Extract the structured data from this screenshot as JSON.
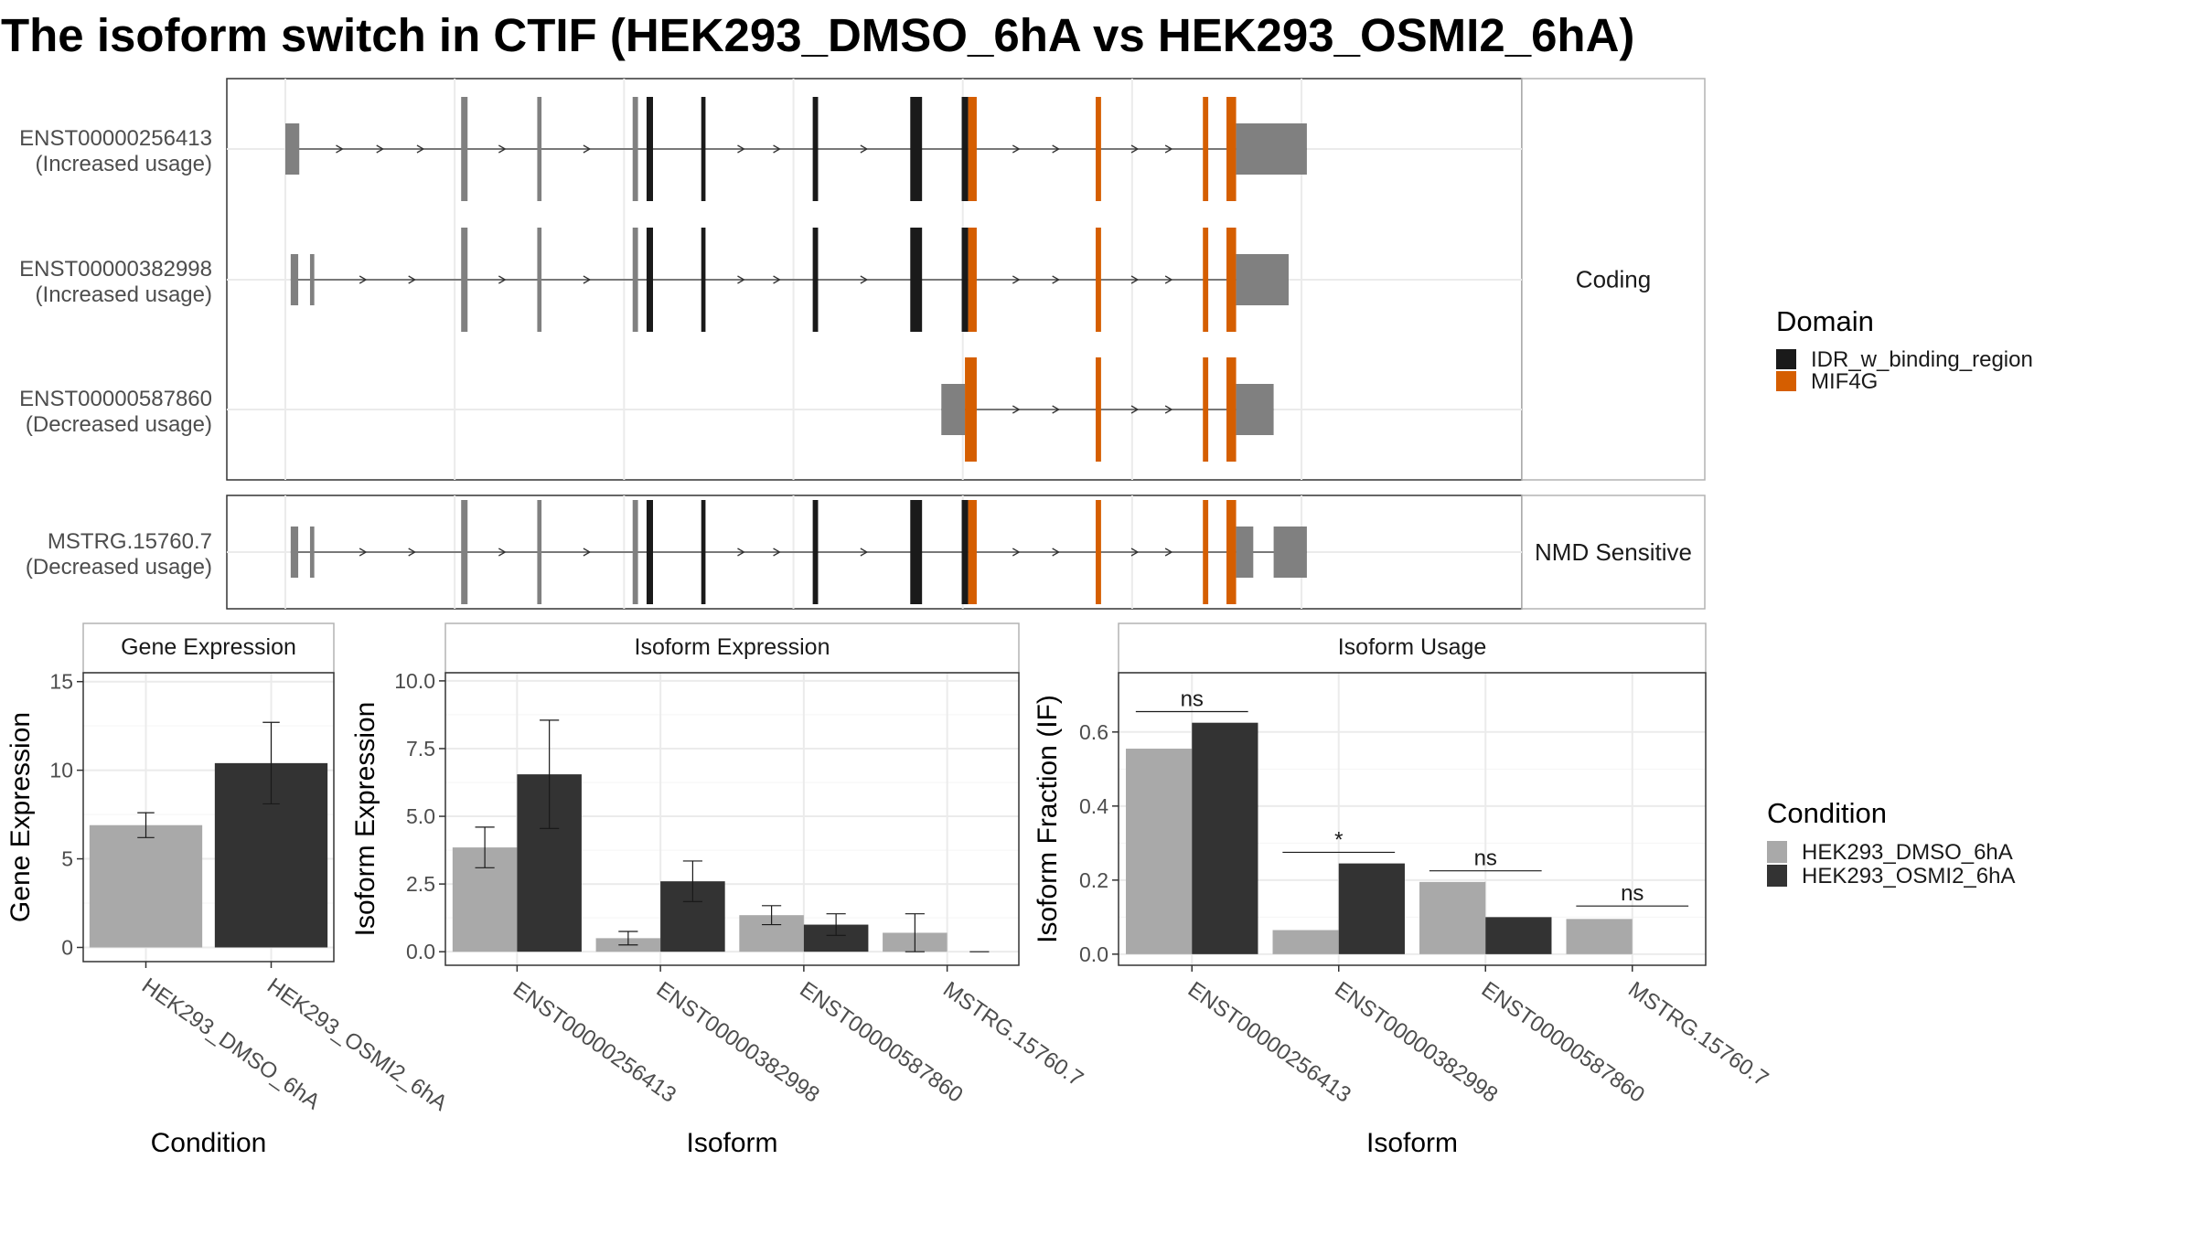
{
  "title": "The isoform switch in CTIF (HEK293_DMSO_6hA vs HEK293_OSMI2_6hA)",
  "colors": {
    "utr": "#808080",
    "cds_plain": "#1a1a1a",
    "idr": "#1a1a1a",
    "mif4g": "#d55e00",
    "dmso": "#a9a9a9",
    "osmi2": "#333333",
    "grid": "#ebebeb",
    "frame": "#333333",
    "strip_bg": "#ffffff"
  },
  "domain_legend": {
    "title": "Domain",
    "items": [
      {
        "label": "IDR_w_binding_region",
        "color": "#1a1a1a"
      },
      {
        "label": "MIF4G",
        "color": "#d55e00"
      }
    ]
  },
  "condition_legend": {
    "title": "Condition",
    "items": [
      {
        "label": "HEK293_DMSO_6hA",
        "color": "#a9a9a9"
      },
      {
        "label": "HEK293_OSMI2_6hA",
        "color": "#333333"
      }
    ]
  },
  "chart_data": [
    {
      "type": "transcript-structure",
      "panels": [
        {
          "strip": "Coding",
          "isoforms": [
            {
              "id": "ENST00000256413",
              "label": "(Increased usage)",
              "exons": [
                {
                  "start": 0.0,
                  "end": 0.013,
                  "kind": "utr"
                },
                {
                  "start": 0.164,
                  "end": 0.17,
                  "kind": "cds"
                },
                {
                  "start": 0.235,
                  "end": 0.239,
                  "kind": "cds"
                },
                {
                  "start": 0.324,
                  "end": 0.329,
                  "kind": "cds"
                },
                {
                  "start": 0.337,
                  "end": 0.343,
                  "kind": "idr"
                },
                {
                  "start": 0.388,
                  "end": 0.392,
                  "kind": "idr"
                },
                {
                  "start": 0.492,
                  "end": 0.497,
                  "kind": "idr"
                },
                {
                  "start": 0.583,
                  "end": 0.594,
                  "kind": "idr"
                },
                {
                  "start": 0.631,
                  "end": 0.637,
                  "kind": "idr"
                },
                {
                  "start": 0.637,
                  "end": 0.645,
                  "kind": "mif4g"
                },
                {
                  "start": 0.756,
                  "end": 0.761,
                  "kind": "mif4g"
                },
                {
                  "start": 0.856,
                  "end": 0.861,
                  "kind": "mif4g"
                },
                {
                  "start": 0.878,
                  "end": 0.887,
                  "kind": "mif4g"
                },
                {
                  "start": 0.887,
                  "end": 0.953,
                  "kind": "utr-tall"
                }
              ]
            },
            {
              "id": "ENST00000382998",
              "label": "(Increased usage)",
              "exons": [
                {
                  "start": 0.005,
                  "end": 0.012,
                  "kind": "utr"
                },
                {
                  "start": 0.023,
                  "end": 0.027,
                  "kind": "utr"
                },
                {
                  "start": 0.164,
                  "end": 0.17,
                  "kind": "cds"
                },
                {
                  "start": 0.235,
                  "end": 0.239,
                  "kind": "cds"
                },
                {
                  "start": 0.324,
                  "end": 0.329,
                  "kind": "cds"
                },
                {
                  "start": 0.337,
                  "end": 0.343,
                  "kind": "idr"
                },
                {
                  "start": 0.388,
                  "end": 0.392,
                  "kind": "idr"
                },
                {
                  "start": 0.492,
                  "end": 0.497,
                  "kind": "idr"
                },
                {
                  "start": 0.583,
                  "end": 0.594,
                  "kind": "idr"
                },
                {
                  "start": 0.631,
                  "end": 0.637,
                  "kind": "idr"
                },
                {
                  "start": 0.637,
                  "end": 0.645,
                  "kind": "mif4g"
                },
                {
                  "start": 0.756,
                  "end": 0.761,
                  "kind": "mif4g"
                },
                {
                  "start": 0.856,
                  "end": 0.861,
                  "kind": "mif4g"
                },
                {
                  "start": 0.878,
                  "end": 0.887,
                  "kind": "mif4g"
                },
                {
                  "start": 0.887,
                  "end": 0.936,
                  "kind": "utr-tall"
                }
              ]
            },
            {
              "id": "ENST00000587860",
              "label": "(Decreased usage)",
              "exons": [
                {
                  "start": 0.612,
                  "end": 0.634,
                  "kind": "utr"
                },
                {
                  "start": 0.634,
                  "end": 0.645,
                  "kind": "mif4g"
                },
                {
                  "start": 0.756,
                  "end": 0.761,
                  "kind": "mif4g"
                },
                {
                  "start": 0.856,
                  "end": 0.861,
                  "kind": "mif4g"
                },
                {
                  "start": 0.878,
                  "end": 0.887,
                  "kind": "mif4g"
                },
                {
                  "start": 0.887,
                  "end": 0.922,
                  "kind": "utr-tall"
                }
              ]
            }
          ]
        },
        {
          "strip": "NMD Sensitive",
          "isoforms": [
            {
              "id": "MSTRG.15760.7",
              "label": "(Decreased usage)",
              "exons": [
                {
                  "start": 0.005,
                  "end": 0.012,
                  "kind": "utr"
                },
                {
                  "start": 0.023,
                  "end": 0.027,
                  "kind": "utr"
                },
                {
                  "start": 0.164,
                  "end": 0.17,
                  "kind": "cds"
                },
                {
                  "start": 0.235,
                  "end": 0.239,
                  "kind": "cds"
                },
                {
                  "start": 0.324,
                  "end": 0.329,
                  "kind": "cds"
                },
                {
                  "start": 0.337,
                  "end": 0.343,
                  "kind": "idr"
                },
                {
                  "start": 0.388,
                  "end": 0.392,
                  "kind": "idr"
                },
                {
                  "start": 0.492,
                  "end": 0.497,
                  "kind": "idr"
                },
                {
                  "start": 0.583,
                  "end": 0.594,
                  "kind": "idr"
                },
                {
                  "start": 0.631,
                  "end": 0.637,
                  "kind": "idr"
                },
                {
                  "start": 0.637,
                  "end": 0.645,
                  "kind": "mif4g"
                },
                {
                  "start": 0.756,
                  "end": 0.761,
                  "kind": "mif4g"
                },
                {
                  "start": 0.856,
                  "end": 0.861,
                  "kind": "mif4g"
                },
                {
                  "start": 0.878,
                  "end": 0.887,
                  "kind": "mif4g"
                },
                {
                  "start": 0.887,
                  "end": 0.903,
                  "kind": "utr-tall"
                },
                {
                  "start": 0.922,
                  "end": 0.953,
                  "kind": "utr-tall"
                }
              ]
            }
          ]
        }
      ]
    },
    {
      "type": "bar",
      "title": "Gene Expression",
      "xlabel": "Condition",
      "ylabel": "Gene Expression",
      "ylim": [
        -0.8,
        15.5
      ],
      "yticks": [
        0,
        5,
        10,
        15
      ],
      "ytick_labels": [
        "0",
        "5",
        "10",
        "15"
      ],
      "categories": [
        "HEK293_DMSO_6hA",
        "HEK293_OSMI2_6hA"
      ],
      "bars": [
        {
          "category": "HEK293_DMSO_6hA",
          "value": 6.9,
          "err_low": 6.2,
          "err_high": 7.6,
          "condition": "HEK293_DMSO_6hA"
        },
        {
          "category": "HEK293_OSMI2_6hA",
          "value": 10.4,
          "err_low": 8.1,
          "err_high": 12.7,
          "condition": "HEK293_OSMI2_6hA"
        }
      ]
    },
    {
      "type": "bar",
      "title": "Isoform Expression",
      "xlabel": "Isoform",
      "ylabel": "Isoform Expression",
      "ylim": [
        -0.5,
        10.3
      ],
      "yticks": [
        0,
        2.5,
        5,
        7.5,
        10
      ],
      "ytick_labels": [
        "0.0",
        "2.5",
        "5.0",
        "7.5",
        "10.0"
      ],
      "categories": [
        "ENST00000256413",
        "ENST00000382998",
        "ENST00000587860",
        "MSTRG.15760.7"
      ],
      "series": [
        {
          "name": "HEK293_DMSO_6hA",
          "values": [
            3.85,
            0.5,
            1.35,
            0.7
          ],
          "err_low": [
            3.1,
            0.25,
            1.0,
            0.0
          ],
          "err_high": [
            4.6,
            0.75,
            1.7,
            1.4
          ]
        },
        {
          "name": "HEK293_OSMI2_6hA",
          "values": [
            6.55,
            2.6,
            1.0,
            0.0
          ],
          "err_low": [
            4.55,
            1.85,
            0.6,
            0.0
          ],
          "err_high": [
            8.55,
            3.35,
            1.4,
            0.0
          ]
        }
      ]
    },
    {
      "type": "bar",
      "title": "Isoform Usage",
      "xlabel": "Isoform",
      "ylabel": "Isoform Fraction (IF)",
      "ylim": [
        -0.03,
        0.76
      ],
      "yticks": [
        0,
        0.2,
        0.4,
        0.6
      ],
      "ytick_labels": [
        "0.0",
        "0.2",
        "0.4",
        "0.6"
      ],
      "categories": [
        "ENST00000256413",
        "ENST00000382998",
        "ENST00000587860",
        "MSTRG.15760.7"
      ],
      "series": [
        {
          "name": "HEK293_DMSO_6hA",
          "values": [
            0.555,
            0.065,
            0.195,
            0.095
          ]
        },
        {
          "name": "HEK293_OSMI2_6hA",
          "values": [
            0.625,
            0.245,
            0.1,
            0.0
          ]
        }
      ],
      "significance": [
        {
          "category": "ENST00000256413",
          "label": "ns",
          "y": 0.655
        },
        {
          "category": "ENST00000382998",
          "label": "*",
          "y": 0.275
        },
        {
          "category": "ENST00000587860",
          "label": "ns",
          "y": 0.225
        },
        {
          "category": "MSTRG.15760.7",
          "label": "ns",
          "y": 0.13
        }
      ]
    }
  ]
}
